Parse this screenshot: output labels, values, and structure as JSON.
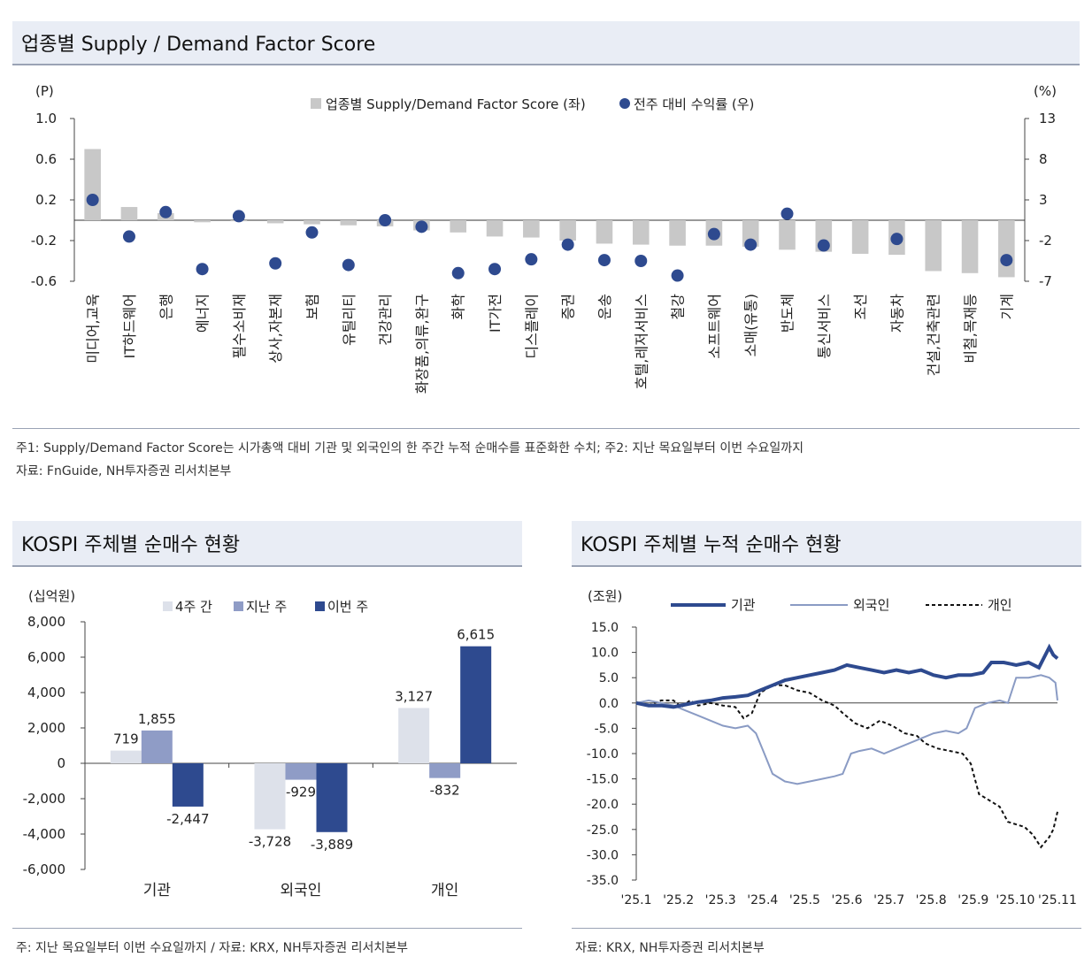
{
  "top": {
    "title": "업종별  Supply / Demand Factor Score",
    "left_unit": "(P)",
    "right_unit": "(%)",
    "legend_bar": "업종별 Supply/Demand Factor Score (좌)",
    "legend_dot": "전주 대비 수익률 (우)",
    "note1": "주1: Supply/Demand Factor Score는 시가총액 대비 기관 및 외국인의 한 주간 누적 순매수를 표준화한 수치; 주2: 지난 목요일부터 이번 수요일까지",
    "note2": "자료: FnGuide, NH투자증권 리서치본부"
  },
  "bl": {
    "title": "KOSPI 주체별 순매수 현황",
    "unit": "(십억원)",
    "note": "주: 지난 목요일부터 이번 수요일까지 / 자료: KRX, NH투자증권 리서치본부"
  },
  "br": {
    "title": "KOSPI 주체별 누적 순매수 현황",
    "unit": "(조원)",
    "note": "자료: KRX, NH투자증권 리서치본부"
  },
  "colors": {
    "bar_gray": "#c8c8c8",
    "dot_navy": "#2e4a8f",
    "w4": "#dde1ea",
    "last": "#8f9cc6",
    "this": "#2e4a8f",
    "inst": "#2e4a8f",
    "foreign": "#8a9bc4",
    "indiv": "#111111"
  },
  "chart_data": [
    {
      "type": "bar",
      "title": "업종별 Supply / Demand Factor Score",
      "categories": [
        "미디어,교육",
        "IT하드웨어",
        "은행",
        "에너지",
        "필수소비재",
        "상사,자본재",
        "보험",
        "유틸리티",
        "건강관리",
        "화장품,의류,완구",
        "화학",
        "IT가전",
        "디스플레이",
        "증권",
        "운송",
        "호텔,레저서비스",
        "철강",
        "소프트웨어",
        "소매(유통)",
        "반도체",
        "통신서비스",
        "조선",
        "자동차",
        "건설,건축관련",
        "비철,목재등",
        "기계"
      ],
      "series": [
        {
          "name": "업종별 Supply/Demand Factor Score (좌)",
          "axis": "left",
          "values": [
            0.7,
            0.13,
            0.07,
            -0.02,
            -0.01,
            -0.03,
            -0.04,
            -0.05,
            -0.06,
            -0.1,
            -0.12,
            -0.16,
            -0.17,
            -0.2,
            -0.23,
            -0.24,
            -0.25,
            -0.25,
            -0.26,
            -0.29,
            -0.31,
            -0.33,
            -0.34,
            -0.5,
            -0.52,
            -0.56
          ]
        },
        {
          "name": "전주 대비 수익률 (우)",
          "axis": "right",
          "type": "scatter",
          "values": [
            3.0,
            -1.5,
            1.5,
            -5.5,
            1.0,
            -4.8,
            -1.0,
            -5.0,
            0.5,
            -0.3,
            -6.0,
            -5.5,
            -4.3,
            -2.5,
            -4.4,
            -4.5,
            -6.3,
            -1.2,
            -2.5,
            1.3,
            -2.6,
            null,
            -1.8,
            null,
            null,
            -4.4
          ]
        }
      ],
      "left_ylim": [
        -0.6,
        1.0
      ],
      "left_ticks": [
        "1.0",
        "0.6",
        "0.2",
        "-0.2",
        "-0.6"
      ],
      "right_ylim": [
        -7,
        13
      ],
      "right_ticks": [
        "13",
        "8",
        "3",
        "-2",
        "-7"
      ]
    },
    {
      "type": "bar",
      "title": "KOSPI 주체별 순매수 현황",
      "categories": [
        "기관",
        "외국인",
        "개인"
      ],
      "series": [
        {
          "name": "4주 간",
          "values": [
            719,
            -3728,
            3127
          ]
        },
        {
          "name": "지난 주",
          "values": [
            1855,
            -929,
            -832
          ]
        },
        {
          "name": "이번 주",
          "values": [
            -2447,
            -3889,
            6615
          ]
        }
      ],
      "data_labels": [
        [
          "719",
          "1,855",
          "-2,447"
        ],
        [
          "-3,728",
          "-929",
          "-3,889"
        ],
        [
          "3,127",
          "-832",
          "6,615"
        ]
      ],
      "ylim": [
        -6000,
        8000
      ],
      "yticks": [
        "8,000",
        "6,000",
        "4,000",
        "2,000",
        "0",
        "-2,000",
        "-4,000",
        "-6,000"
      ]
    },
    {
      "type": "line",
      "title": "KOSPI 주체별 누적 순매수 현황",
      "x_range": [
        0,
        10.2
      ],
      "xticks": [
        "'25.1",
        "'25.2",
        "'25.3",
        "'25.4",
        "'25.5",
        "'25.6",
        "'25.7",
        "'25.8",
        "'25.9",
        "'25.10",
        "'25.11"
      ],
      "ylim": [
        -35,
        15
      ],
      "yticks": [
        "15.0",
        "10.0",
        "5.0",
        "0.0",
        "-5.0",
        "-10.0",
        "-15.0",
        "-20.0",
        "-25.0",
        "-30.0",
        "-35.0"
      ],
      "series": [
        {
          "name": "기관",
          "points": [
            [
              0,
              0
            ],
            [
              0.3,
              -0.5
            ],
            [
              0.6,
              -0.5
            ],
            [
              0.9,
              -0.8
            ],
            [
              1.2,
              -0.3
            ],
            [
              1.5,
              0.2
            ],
            [
              1.8,
              0.5
            ],
            [
              2.1,
              1.0
            ],
            [
              2.4,
              1.2
            ],
            [
              2.7,
              1.5
            ],
            [
              3.0,
              2.5
            ],
            [
              3.3,
              3.5
            ],
            [
              3.6,
              4.5
            ],
            [
              3.9,
              5.0
            ],
            [
              4.2,
              5.5
            ],
            [
              4.5,
              6.0
            ],
            [
              4.8,
              6.5
            ],
            [
              5.1,
              7.5
            ],
            [
              5.4,
              7.0
            ],
            [
              5.7,
              6.5
            ],
            [
              6.0,
              6.0
            ],
            [
              6.3,
              6.5
            ],
            [
              6.6,
              6.0
            ],
            [
              6.9,
              6.5
            ],
            [
              7.2,
              5.5
            ],
            [
              7.5,
              5.0
            ],
            [
              7.8,
              5.5
            ],
            [
              8.1,
              5.5
            ],
            [
              8.4,
              6.0
            ],
            [
              8.6,
              8.0
            ],
            [
              8.9,
              8.0
            ],
            [
              9.2,
              7.5
            ],
            [
              9.5,
              8.0
            ],
            [
              9.75,
              7.0
            ],
            [
              10.0,
              11.0
            ],
            [
              10.1,
              9.5
            ],
            [
              10.2,
              8.8
            ]
          ]
        },
        {
          "name": "외국인",
          "points": [
            [
              0,
              0
            ],
            [
              0.3,
              0.5
            ],
            [
              0.6,
              0.0
            ],
            [
              0.9,
              -0.5
            ],
            [
              1.2,
              -1.5
            ],
            [
              1.5,
              -2.5
            ],
            [
              1.8,
              -3.5
            ],
            [
              2.1,
              -4.5
            ],
            [
              2.4,
              -5.0
            ],
            [
              2.7,
              -4.5
            ],
            [
              2.9,
              -6.0
            ],
            [
              3.1,
              -10.0
            ],
            [
              3.3,
              -14.0
            ],
            [
              3.6,
              -15.5
            ],
            [
              3.9,
              -16.0
            ],
            [
              4.2,
              -15.5
            ],
            [
              4.5,
              -15.0
            ],
            [
              4.8,
              -14.5
            ],
            [
              5.0,
              -14.0
            ],
            [
              5.2,
              -10.0
            ],
            [
              5.4,
              -9.5
            ],
            [
              5.7,
              -9.0
            ],
            [
              6.0,
              -10.0
            ],
            [
              6.3,
              -9.0
            ],
            [
              6.6,
              -8.0
            ],
            [
              6.9,
              -7.0
            ],
            [
              7.2,
              -6.0
            ],
            [
              7.5,
              -5.5
            ],
            [
              7.8,
              -6.0
            ],
            [
              8.0,
              -5.0
            ],
            [
              8.2,
              -1.0
            ],
            [
              8.5,
              0.0
            ],
            [
              8.8,
              0.5
            ],
            [
              9.0,
              0.0
            ],
            [
              9.2,
              5.0
            ],
            [
              9.5,
              5.0
            ],
            [
              9.8,
              5.5
            ],
            [
              10.0,
              5.0
            ],
            [
              10.15,
              4.0
            ],
            [
              10.2,
              0.5
            ]
          ]
        },
        {
          "name": "개인",
          "points": [
            [
              0,
              0
            ],
            [
              0.3,
              -0.5
            ],
            [
              0.6,
              0.5
            ],
            [
              0.9,
              0.5
            ],
            [
              1.1,
              -0.8
            ],
            [
              1.3,
              0.5
            ],
            [
              1.5,
              -0.5
            ],
            [
              1.8,
              0.0
            ],
            [
              2.1,
              -0.5
            ],
            [
              2.4,
              -0.8
            ],
            [
              2.6,
              -3.0
            ],
            [
              2.8,
              -2.0
            ],
            [
              3.0,
              2.0
            ],
            [
              3.3,
              3.5
            ],
            [
              3.6,
              3.5
            ],
            [
              3.9,
              2.5
            ],
            [
              4.2,
              2.0
            ],
            [
              4.5,
              0.5
            ],
            [
              4.8,
              -0.5
            ],
            [
              5.0,
              -2.0
            ],
            [
              5.3,
              -4.0
            ],
            [
              5.6,
              -5.0
            ],
            [
              5.9,
              -3.5
            ],
            [
              6.2,
              -4.5
            ],
            [
              6.5,
              -6.0
            ],
            [
              6.8,
              -6.5
            ],
            [
              7.0,
              -8.0
            ],
            [
              7.3,
              -9.0
            ],
            [
              7.6,
              -9.5
            ],
            [
              7.9,
              -10.0
            ],
            [
              8.1,
              -12.0
            ],
            [
              8.3,
              -18.0
            ],
            [
              8.6,
              -19.5
            ],
            [
              8.8,
              -20.5
            ],
            [
              9.0,
              -23.5
            ],
            [
              9.2,
              -24.0
            ],
            [
              9.4,
              -24.5
            ],
            [
              9.6,
              -26.0
            ],
            [
              9.8,
              -28.5
            ],
            [
              10.0,
              -26.5
            ],
            [
              10.1,
              -25.0
            ],
            [
              10.2,
              -21.5
            ]
          ]
        }
      ]
    }
  ]
}
